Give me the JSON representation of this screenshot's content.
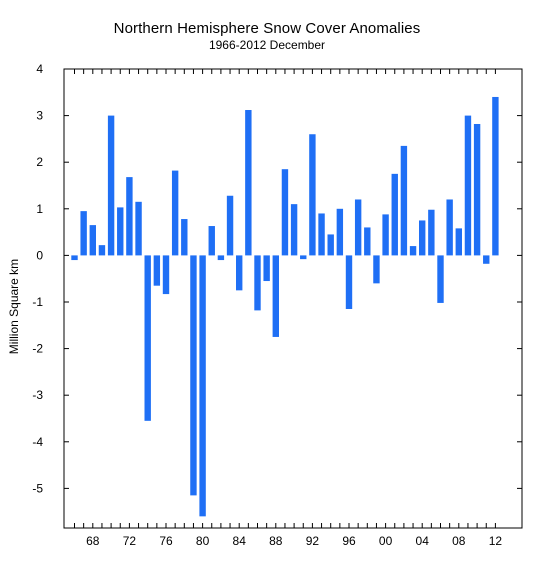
{
  "chart_data": {
    "type": "bar",
    "title": "Northern Hemisphere Snow Cover Anomalies",
    "subtitle": "1966-2012 December",
    "xlabel": "",
    "ylabel": "Million Square km",
    "ylim": [
      -5.85,
      4.0
    ],
    "yticks": [
      4,
      3,
      2,
      1,
      0,
      -1,
      -2,
      -3,
      -4,
      -5
    ],
    "xtick_labels": [
      "68",
      "72",
      "76",
      "80",
      "84",
      "88",
      "92",
      "96",
      "00",
      "04",
      "08",
      "12"
    ],
    "xtick_years": [
      1968,
      1972,
      1976,
      1980,
      1984,
      1988,
      1992,
      1996,
      2000,
      2004,
      2008,
      2012
    ],
    "bar_color": "#1f6ff5",
    "grid": false,
    "categories": [
      1966,
      1967,
      1968,
      1969,
      1970,
      1971,
      1972,
      1973,
      1974,
      1975,
      1976,
      1977,
      1978,
      1979,
      1980,
      1981,
      1982,
      1983,
      1984,
      1985,
      1986,
      1987,
      1988,
      1989,
      1990,
      1991,
      1992,
      1993,
      1994,
      1995,
      1996,
      1997,
      1998,
      1999,
      2000,
      2001,
      2002,
      2003,
      2004,
      2005,
      2006,
      2007,
      2008,
      2009,
      2010,
      2011,
      2012
    ],
    "values": [
      -0.1,
      0.95,
      0.65,
      0.22,
      3.0,
      1.03,
      1.68,
      1.15,
      -3.55,
      -0.65,
      -0.83,
      1.82,
      0.78,
      -5.15,
      -5.6,
      0.63,
      -0.1,
      1.28,
      -0.75,
      3.12,
      -1.18,
      -0.55,
      -1.75,
      1.85,
      1.1,
      -0.08,
      2.6,
      0.9,
      0.45,
      1.0,
      -1.15,
      1.2,
      0.6,
      -0.6,
      0.88,
      1.75,
      2.35,
      0.2,
      0.75,
      0.98,
      -1.02,
      1.2,
      0.58,
      3.0,
      2.82,
      -0.18,
      3.4
    ]
  }
}
